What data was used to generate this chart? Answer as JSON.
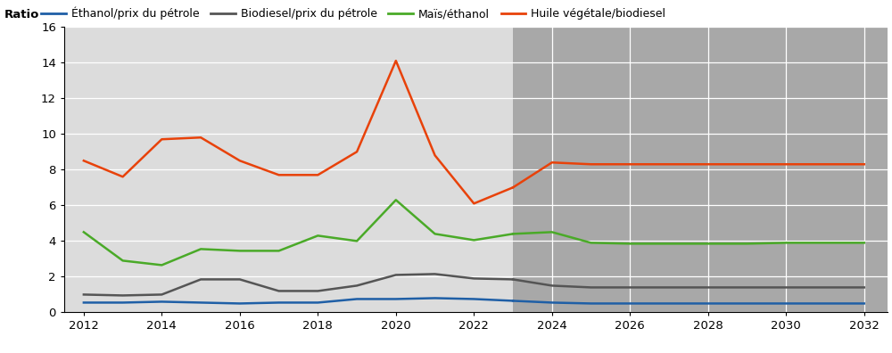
{
  "years_hist": [
    2012,
    2013,
    2014,
    2015,
    2016,
    2017,
    2018,
    2019,
    2020,
    2021,
    2022,
    2023
  ],
  "years_proj": [
    2023,
    2024,
    2025,
    2026,
    2027,
    2028,
    2029,
    2030,
    2031,
    2032
  ],
  "ethanol_hist": [
    0.55,
    0.55,
    0.6,
    0.55,
    0.5,
    0.55,
    0.55,
    0.75,
    0.75,
    0.8,
    0.75,
    0.65
  ],
  "ethanol_proj": [
    0.65,
    0.55,
    0.5,
    0.5,
    0.5,
    0.5,
    0.5,
    0.5,
    0.5,
    0.5
  ],
  "biodiesel_hist": [
    1.0,
    0.95,
    1.0,
    1.85,
    1.85,
    1.2,
    1.2,
    1.5,
    2.1,
    2.15,
    1.9,
    1.85
  ],
  "biodiesel_proj": [
    1.85,
    1.5,
    1.4,
    1.4,
    1.4,
    1.4,
    1.4,
    1.4,
    1.4,
    1.4
  ],
  "mais_hist": [
    4.5,
    2.9,
    2.65,
    3.55,
    3.45,
    3.45,
    4.3,
    4.0,
    6.3,
    4.4,
    4.05,
    4.4
  ],
  "mais_proj": [
    4.4,
    4.5,
    3.9,
    3.85,
    3.85,
    3.85,
    3.85,
    3.9,
    3.9,
    3.9
  ],
  "huile_hist": [
    8.5,
    7.6,
    9.7,
    9.8,
    8.5,
    7.7,
    7.7,
    9.0,
    14.1,
    8.8,
    6.1,
    7.0
  ],
  "huile_proj": [
    7.0,
    8.4,
    8.3,
    8.3,
    8.3,
    8.3,
    8.3,
    8.3,
    8.3,
    8.3
  ],
  "split_year": 2023,
  "xlim": [
    2011.5,
    2032.6
  ],
  "ylim": [
    0,
    16
  ],
  "yticks": [
    0,
    2,
    4,
    6,
    8,
    10,
    12,
    14,
    16
  ],
  "xticks": [
    2012,
    2014,
    2016,
    2018,
    2020,
    2022,
    2024,
    2026,
    2028,
    2030,
    2032
  ],
  "ylabel": "Ratio",
  "color_ethanol": "#1f5fa6",
  "color_biodiesel": "#555555",
  "color_mais": "#4aaa28",
  "color_huile": "#e8420a",
  "bg_hist": "#dcdcdc",
  "bg_proj": "#a8a8a8",
  "bg_header": "#d4d4d4",
  "grid_color": "#ffffff",
  "legend_labels": [
    "Éthanol/prix du pétrole",
    "Biodiesel/prix du pétrole",
    "Maïs/éthanol",
    "Huile végétale/biodiesel"
  ],
  "linewidth": 1.8,
  "tick_fontsize": 9.5,
  "legend_fontsize": 9.0
}
